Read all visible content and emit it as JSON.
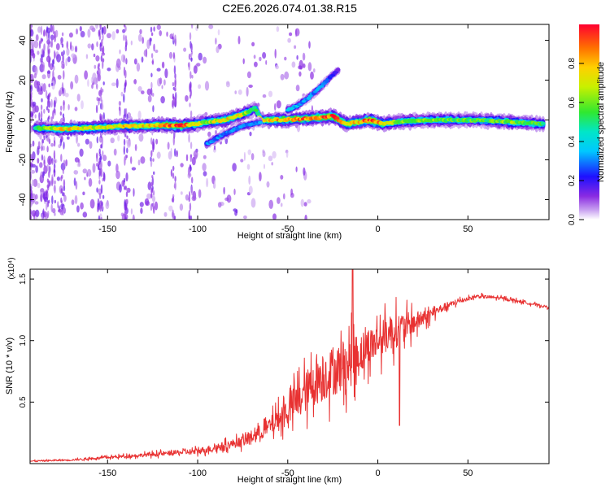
{
  "figure_title": "C2E6.2026.074.01.38.R15",
  "chart_data": [
    {
      "type": "heatmap",
      "title": "C2E6.2026.074.01.38.R15",
      "xlabel": "Height of straight line (km)",
      "ylabel": "Frequency (Hz)",
      "xlim": [
        -193,
        95
      ],
      "ylim": [
        -50,
        48
      ],
      "xticks": [
        -150,
        -100,
        -50,
        0,
        50
      ],
      "yticks": [
        -40,
        -20,
        0,
        20,
        40
      ],
      "colorbar": {
        "label": "Normalized spectral amplitude",
        "range": [
          0,
          1
        ],
        "ticks": [
          "0.0",
          "0.2",
          "0.4",
          "0.6",
          "0.8"
        ],
        "colormap": "rainbow (magenta-blue-cyan-green-yellow-red)"
      },
      "ridges": [
        {
          "name": "main carrier",
          "points": [
            [
              -190,
              -4,
              0.5
            ],
            [
              -175,
              -4.5,
              0.75
            ],
            [
              -160,
              -4,
              0.7
            ],
            [
              -150,
              -3.5,
              0.7
            ],
            [
              -140,
              -3,
              0.75
            ],
            [
              -130,
              -3,
              0.75
            ],
            [
              -120,
              -2.5,
              0.8
            ],
            [
              -110,
              -3,
              0.95
            ],
            [
              -100,
              -2,
              0.7
            ],
            [
              -95,
              -1,
              0.65
            ],
            [
              -85,
              0,
              0.75
            ],
            [
              -78,
              2,
              0.75
            ],
            [
              -72,
              4,
              0.6
            ],
            [
              -68,
              6,
              0.45
            ],
            [
              -65,
              0,
              0.7
            ],
            [
              -55,
              0,
              0.8
            ],
            [
              -45,
              0.5,
              0.85
            ],
            [
              -35,
              1,
              0.85
            ],
            [
              -25,
              2,
              0.95
            ],
            [
              -18,
              -2,
              0.8
            ],
            [
              -10,
              -1,
              0.75
            ],
            [
              -5,
              0,
              0.95
            ],
            [
              3,
              -2,
              0.75
            ],
            [
              10,
              -1,
              0.6
            ],
            [
              30,
              0,
              0.6
            ],
            [
              55,
              0,
              0.55
            ],
            [
              75,
              -1,
              0.6
            ],
            [
              92,
              -2,
              0.55
            ]
          ]
        },
        {
          "name": "rising branch",
          "points": [
            [
              -50,
              5,
              0.4
            ],
            [
              -45,
              7,
              0.35
            ],
            [
              -40,
              10,
              0.3
            ],
            [
              -35,
              14,
              0.3
            ],
            [
              -30,
              18,
              0.3
            ],
            [
              -27,
              21,
              0.25
            ],
            [
              -22,
              25,
              0.15
            ]
          ]
        },
        {
          "name": "descending branch",
          "points": [
            [
              -95,
              -12,
              0.3
            ],
            [
              -85,
              -7,
              0.3
            ],
            [
              -75,
              -3,
              0.3
            ],
            [
              -65,
              -1,
              0.3
            ]
          ]
        }
      ]
    },
    {
      "type": "line",
      "title": "",
      "xlabel": "Height of straight line (km)",
      "ylabel": "SNR (10 * v/v)",
      "scale_label": "(x10⁴)",
      "xlim": [
        -193,
        95
      ],
      "ylim": [
        0,
        1.58
      ],
      "xticks": [
        -150,
        -100,
        -50,
        0,
        50
      ],
      "yticks": [
        "0.5",
        "1.0",
        "1.5"
      ],
      "grid": false,
      "color": "#e83232",
      "envelope": [
        [
          -193,
          0.02
        ],
        [
          -170,
          0.03
        ],
        [
          -150,
          0.05
        ],
        [
          -120,
          0.08
        ],
        [
          -100,
          0.1
        ],
        [
          -90,
          0.13
        ],
        [
          -75,
          0.18
        ],
        [
          -62,
          0.28
        ],
        [
          -52,
          0.4
        ],
        [
          -42,
          0.55
        ],
        [
          -35,
          0.66
        ],
        [
          -25,
          0.75
        ],
        [
          -17,
          0.8
        ],
        [
          -8,
          0.92
        ],
        [
          0,
          1.0
        ],
        [
          8,
          1.07
        ],
        [
          18,
          1.13
        ],
        [
          28,
          1.2
        ],
        [
          35,
          1.26
        ],
        [
          45,
          1.32
        ],
        [
          55,
          1.36
        ],
        [
          65,
          1.35
        ],
        [
          75,
          1.33
        ],
        [
          85,
          1.3
        ],
        [
          95,
          1.27
        ]
      ],
      "noise_amplitude": [
        [
          -193,
          0.01
        ],
        [
          -150,
          0.02
        ],
        [
          -110,
          0.04
        ],
        [
          -80,
          0.07
        ],
        [
          -60,
          0.14
        ],
        [
          -45,
          0.3
        ],
        [
          -30,
          0.4
        ],
        [
          -15,
          0.4
        ],
        [
          -5,
          0.3
        ],
        [
          10,
          0.28
        ],
        [
          20,
          0.18
        ],
        [
          30,
          0.08
        ],
        [
          50,
          0.03
        ],
        [
          95,
          0.02
        ]
      ],
      "peaks": [
        {
          "x": -14,
          "y": 1.58
        },
        {
          "x": 12,
          "y": 0.31
        }
      ]
    }
  ]
}
